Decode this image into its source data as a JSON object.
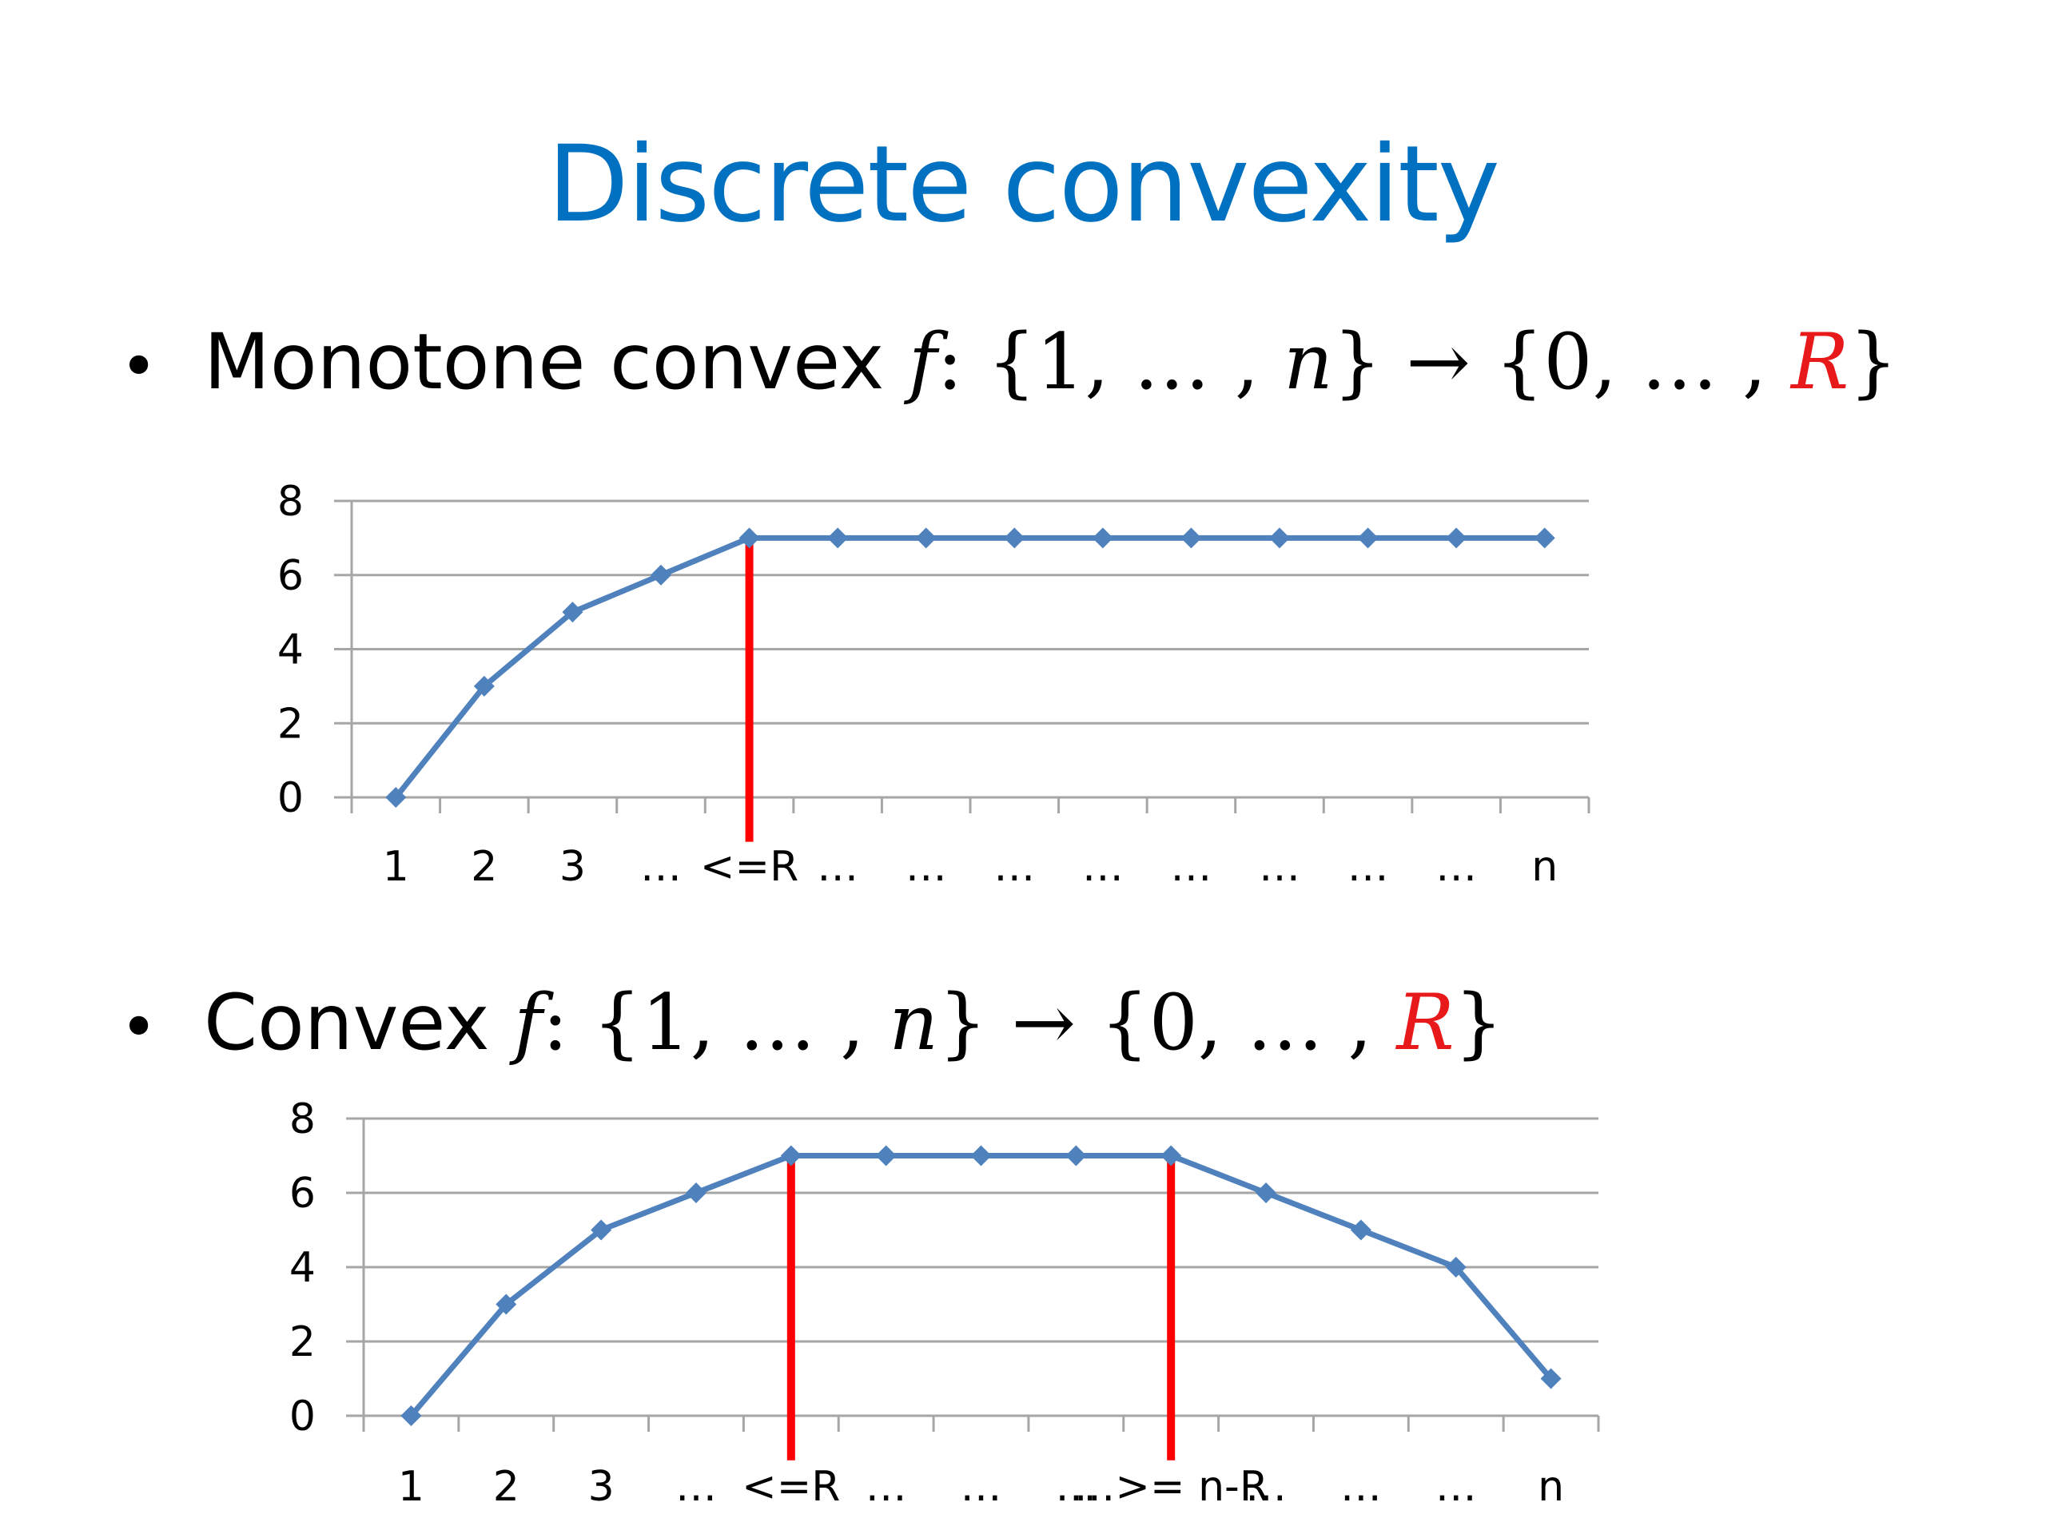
{
  "slide": {
    "title": "Discrete convexity",
    "bullets": [
      {
        "prefix": "Monotone convex",
        "func": "f",
        "colon": ":",
        "domain_open": "{1, … ,",
        "n": "n",
        "domain_close": "}",
        "arrow": "→",
        "range_open": "{0, … ,",
        "R": "R",
        "range_close": "}"
      },
      {
        "prefix": "Convex",
        "func": "f",
        "colon": ":",
        "domain_open": "{1, … ,",
        "n": "n",
        "domain_close": "}",
        "arrow": "→",
        "range_open": "{0, … ,",
        "R": "R",
        "range_close": "}"
      }
    ],
    "bullet_symbol": "•"
  },
  "colors": {
    "title": "#0070c0",
    "series": "#4f81bd",
    "marker_line": "#ff0000",
    "grid": "#a6a6a6",
    "highlight": "#e8191a"
  },
  "chart_data": [
    {
      "type": "line",
      "categories": [
        "1",
        "2",
        "3",
        "…",
        "<=R",
        "…",
        "…",
        "…",
        "…",
        "…",
        "…",
        "…",
        "…",
        "n"
      ],
      "series": [
        {
          "values": [
            0,
            3,
            5,
            6,
            7,
            7,
            7,
            7,
            7,
            7,
            7,
            7,
            7,
            7
          ]
        }
      ],
      "yticks": [
        "0",
        "2",
        "4",
        "6",
        "8"
      ],
      "ylim": [
        0,
        8
      ],
      "vertical_markers": [
        {
          "category_index": 4,
          "from": -1.2,
          "to": 7
        }
      ],
      "grid": true
    },
    {
      "type": "line",
      "categories": [
        "1",
        "2",
        "3",
        "…",
        "<=R",
        "…",
        "…",
        "…",
        "…>= n-R",
        "…",
        "…",
        "…",
        "n"
      ],
      "series": [
        {
          "values": [
            0,
            3,
            5,
            6,
            7,
            7,
            7,
            7,
            7,
            6,
            5,
            4,
            1
          ]
        }
      ],
      "yticks": [
        "0",
        "2",
        "4",
        "6",
        "8"
      ],
      "ylim": [
        0,
        8
      ],
      "vertical_markers": [
        {
          "category_index": 4,
          "from": -1.2,
          "to": 7
        },
        {
          "category_index": 8,
          "from": -1.2,
          "to": 7
        }
      ],
      "grid": true
    }
  ]
}
